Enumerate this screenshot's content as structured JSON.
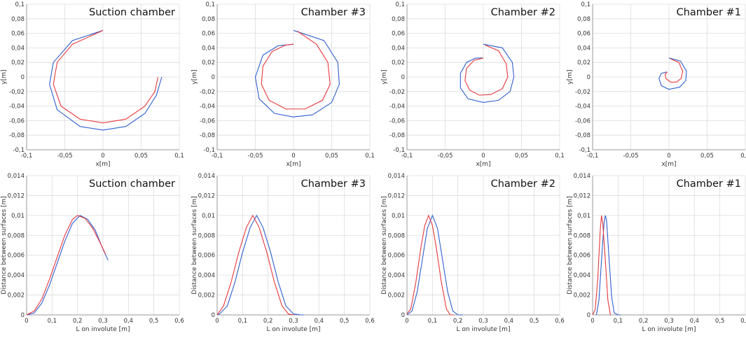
{
  "chart_data": [
    {
      "type": "line",
      "title": "Suction chamber",
      "xlabel": "x[m]",
      "ylabel": "y[m]",
      "grid": true,
      "xlim": [
        -0.1,
        0.1
      ],
      "ylim": [
        -0.1,
        0.1
      ],
      "xticks": [
        {
          "value": -0.1,
          "label": "-0,1"
        },
        {
          "value": -0.05,
          "label": "-0,05"
        },
        0,
        {
          "value": 0.05,
          "label": "0,05"
        },
        {
          "value": 0.1,
          "label": "0,1"
        }
      ],
      "yticks": [
        {
          "value": 0.1,
          "label": "0,1"
        },
        {
          "value": 0.08,
          "label": "0,08"
        },
        {
          "value": 0.06,
          "label": "0,06"
        },
        {
          "value": 0.04,
          "label": "0,04"
        },
        {
          "value": 0.02,
          "label": "0,02"
        },
        0,
        {
          "value": -0.02,
          "label": "-0,02"
        },
        {
          "value": -0.04,
          "label": "-0,04"
        },
        {
          "value": -0.06,
          "label": "-0,06"
        },
        {
          "value": -0.08,
          "label": "-0,08"
        },
        {
          "value": -0.1,
          "label": "-0,1"
        }
      ],
      "series": [
        {
          "color": "#2f5fd0",
          "x": [
            0,
            -0.04,
            -0.065,
            -0.07,
            -0.06,
            -0.03,
            0,
            0.03,
            0.055,
            0.07,
            0.077
          ],
          "values": [
            0.064,
            0.05,
            0.02,
            -0.01,
            -0.045,
            -0.068,
            -0.073,
            -0.068,
            -0.05,
            -0.025,
            0
          ]
        },
        {
          "color": "#e8383d",
          "x": [
            0,
            -0.04,
            -0.06,
            -0.065,
            -0.055,
            -0.03,
            0,
            0.03,
            0.055,
            0.068,
            0.072
          ],
          "values": [
            0.064,
            0.045,
            0.02,
            -0.01,
            -0.04,
            -0.058,
            -0.063,
            -0.058,
            -0.04,
            -0.02,
            0
          ]
        }
      ]
    },
    {
      "type": "line",
      "title": "Chamber #3",
      "xlabel": "x[m]",
      "ylabel": "y[m]",
      "grid": true,
      "xlim": [
        -0.1,
        0.1
      ],
      "ylim": [
        -0.1,
        0.1
      ],
      "xticks": [
        {
          "value": -0.1,
          "label": "-0,1"
        },
        {
          "value": -0.05,
          "label": "-0,05"
        },
        0,
        {
          "value": 0.05,
          "label": "0,05"
        },
        {
          "value": 0.1,
          "label": "0,1"
        }
      ],
      "yticks": [
        {
          "value": 0.1,
          "label": "0,1"
        },
        {
          "value": 0.08,
          "label": "0,08"
        },
        {
          "value": 0.06,
          "label": "0,06"
        },
        {
          "value": 0.04,
          "label": "0,04"
        },
        {
          "value": 0.02,
          "label": "0,02"
        },
        0,
        {
          "value": -0.02,
          "label": "-0,02"
        },
        {
          "value": -0.04,
          "label": "-0,04"
        },
        {
          "value": -0.06,
          "label": "-0,06"
        },
        {
          "value": -0.08,
          "label": "-0,08"
        },
        {
          "value": -0.1,
          "label": "-0,1"
        }
      ],
      "series": [
        {
          "color": "#2f5fd0",
          "x": [
            0,
            0.04,
            0.058,
            0.06,
            0.05,
            0.025,
            0,
            -0.025,
            -0.045,
            -0.05,
            -0.04,
            -0.02,
            0
          ],
          "values": [
            0.064,
            0.05,
            0.02,
            -0.01,
            -0.035,
            -0.052,
            -0.055,
            -0.05,
            -0.03,
            0,
            0.03,
            0.043,
            0.045
          ]
        },
        {
          "color": "#e8383d",
          "x": [
            0.005,
            0.03,
            0.045,
            0.048,
            0.038,
            0.015,
            -0.01,
            -0.032,
            -0.042,
            -0.04,
            -0.028,
            -0.01,
            0
          ],
          "values": [
            0.063,
            0.045,
            0.02,
            -0.01,
            -0.032,
            -0.044,
            -0.044,
            -0.032,
            -0.01,
            0.015,
            0.035,
            0.044,
            0.045
          ]
        }
      ]
    },
    {
      "type": "line",
      "title": "Chamber #2",
      "xlabel": "x[m]",
      "ylabel": "y[m]",
      "grid": true,
      "xlim": [
        -0.1,
        0.1
      ],
      "ylim": [
        -0.1,
        0.1
      ],
      "xticks": [
        {
          "value": -0.1,
          "label": "-0,1"
        },
        {
          "value": -0.05,
          "label": "-0,05"
        },
        0,
        {
          "value": 0.05,
          "label": "0,05"
        },
        {
          "value": 0.1,
          "label": "0,1"
        }
      ],
      "yticks": [
        {
          "value": 0.1,
          "label": "0,1"
        },
        {
          "value": 0.08,
          "label": "0,08"
        },
        {
          "value": 0.06,
          "label": "0,06"
        },
        {
          "value": 0.04,
          "label": "0,04"
        },
        {
          "value": 0.02,
          "label": "0,02"
        },
        0,
        {
          "value": -0.02,
          "label": "-0,02"
        },
        {
          "value": -0.04,
          "label": "-0,04"
        },
        {
          "value": -0.06,
          "label": "-0,06"
        },
        {
          "value": -0.08,
          "label": "-0,08"
        },
        {
          "value": -0.1,
          "label": "-0,1"
        }
      ],
      "series": [
        {
          "color": "#2f5fd0",
          "x": [
            0,
            0.025,
            0.038,
            0.04,
            0.035,
            0.02,
            0,
            -0.02,
            -0.03,
            -0.03,
            -0.022,
            -0.01,
            0
          ],
          "values": [
            0.045,
            0.04,
            0.02,
            0,
            -0.02,
            -0.032,
            -0.035,
            -0.03,
            -0.015,
            0.005,
            0.02,
            0.026,
            0.026
          ]
        },
        {
          "color": "#e8383d",
          "x": [
            0.002,
            0.02,
            0.03,
            0.032,
            0.025,
            0.01,
            -0.005,
            -0.018,
            -0.024,
            -0.022,
            -0.012,
            0
          ],
          "values": [
            0.044,
            0.036,
            0.018,
            0,
            -0.016,
            -0.024,
            -0.025,
            -0.018,
            -0.005,
            0.012,
            0.023,
            0.026
          ]
        }
      ]
    },
    {
      "type": "line",
      "title": "Chamber #1",
      "xlabel": "x[m]",
      "ylabel": "y[m]",
      "grid": true,
      "xlim": [
        -0.1,
        0.1
      ],
      "ylim": [
        -0.1,
        0.1
      ],
      "xticks": [
        {
          "value": -0.1,
          "label": "-0,1"
        },
        {
          "value": -0.05,
          "label": "-0,05"
        },
        0,
        {
          "value": 0.05,
          "label": "0,05"
        },
        {
          "value": 0.1,
          "label": "0,1"
        }
      ],
      "yticks": [
        {
          "value": 0.1,
          "label": "0,1"
        },
        {
          "value": 0.08,
          "label": "0,08"
        },
        {
          "value": 0.06,
          "label": "0,06"
        },
        {
          "value": 0.04,
          "label": "0,04"
        },
        {
          "value": 0.02,
          "label": "0,02"
        },
        0,
        {
          "value": -0.02,
          "label": "-0,02"
        },
        {
          "value": -0.04,
          "label": "-0,04"
        },
        {
          "value": -0.06,
          "label": "-0,06"
        },
        {
          "value": -0.08,
          "label": "-0,08"
        },
        {
          "value": -0.1,
          "label": "-0,1"
        }
      ],
      "series": [
        {
          "color": "#2f5fd0",
          "x": [
            0,
            0.015,
            0.023,
            0.022,
            0.014,
            0,
            -0.01,
            -0.013,
            -0.01,
            -0.003
          ],
          "values": [
            0.026,
            0.022,
            0.008,
            -0.005,
            -0.014,
            -0.017,
            -0.012,
            -0.002,
            0.005,
            0.007
          ]
        },
        {
          "color": "#e8383d",
          "x": [
            0.002,
            0.013,
            0.018,
            0.016,
            0.01,
            0.002,
            -0.004,
            -0.005,
            -0.002
          ],
          "values": [
            0.025,
            0.02,
            0.008,
            -0.002,
            -0.007,
            -0.007,
            -0.002,
            0.004,
            0.007
          ]
        }
      ]
    },
    {
      "type": "line",
      "title": "Suction chamber",
      "xlabel": "L on involute [m]",
      "ylabel": "Distance between surfaces [m]",
      "grid": true,
      "xlim": [
        0,
        0.6
      ],
      "ylim": [
        0,
        0.014
      ],
      "xticks": [
        0,
        {
          "value": 0.1,
          "label": "0,1"
        },
        {
          "value": 0.2,
          "label": "0,2"
        },
        {
          "value": 0.3,
          "label": "0,3"
        },
        {
          "value": 0.4,
          "label": "0,4"
        },
        {
          "value": 0.5,
          "label": "0,5"
        },
        {
          "value": 0.6,
          "label": "0,6"
        }
      ],
      "yticks": [
        {
          "value": 0.014,
          "label": "0,014"
        },
        {
          "value": 0.012,
          "label": "0,012"
        },
        {
          "value": 0.01,
          "label": "0,01"
        },
        {
          "value": 0.008,
          "label": "0,008"
        },
        {
          "value": 0.006,
          "label": "0,006"
        },
        {
          "value": 0.004,
          "label": "0,004"
        },
        {
          "value": 0.002,
          "label": "0,002"
        },
        0
      ],
      "series": [
        {
          "color": "#2f5fd0",
          "x": [
            0,
            0.03,
            0.06,
            0.09,
            0.12,
            0.15,
            0.18,
            0.21,
            0.24,
            0.27,
            0.3,
            0.32
          ],
          "values": [
            0,
            0.0002,
            0.0012,
            0.003,
            0.0052,
            0.0074,
            0.0092,
            0.01,
            0.0096,
            0.0085,
            0.0066,
            0.0055
          ]
        },
        {
          "color": "#e8383d",
          "x": [
            0,
            0.03,
            0.06,
            0.09,
            0.12,
            0.15,
            0.18,
            0.2,
            0.23,
            0.26,
            0.29,
            0.31
          ],
          "values": [
            0,
            0.0004,
            0.0016,
            0.0036,
            0.0058,
            0.008,
            0.0096,
            0.01,
            0.0097,
            0.0087,
            0.0072,
            0.0061
          ]
        }
      ]
    },
    {
      "type": "line",
      "title": "Chamber #3",
      "xlabel": "L on involute [m]",
      "ylabel": "Distance between surfaces [m]",
      "grid": true,
      "xlim": [
        0,
        0.6
      ],
      "ylim": [
        0,
        0.014
      ],
      "xticks": [
        0,
        {
          "value": 0.1,
          "label": "0,1"
        },
        {
          "value": 0.2,
          "label": "0,2"
        },
        {
          "value": 0.3,
          "label": "0,3"
        },
        {
          "value": 0.4,
          "label": "0,4"
        },
        {
          "value": 0.5,
          "label": "0,5"
        },
        {
          "value": 0.6,
          "label": "0,6"
        }
      ],
      "yticks": [
        {
          "value": 0.014,
          "label": "0,014"
        },
        {
          "value": 0.012,
          "label": "0,012"
        },
        {
          "value": 0.01,
          "label": "0,01"
        },
        {
          "value": 0.008,
          "label": "0,008"
        },
        {
          "value": 0.006,
          "label": "0,006"
        },
        {
          "value": 0.004,
          "label": "0,004"
        },
        {
          "value": 0.002,
          "label": "0,002"
        },
        0
      ],
      "series": [
        {
          "color": "#2f5fd0",
          "x": [
            0,
            0.01,
            0.04,
            0.07,
            0.1,
            0.13,
            0.155,
            0.18,
            0.21,
            0.24,
            0.27,
            0.3,
            0.33,
            0.34
          ],
          "values": [
            0,
            0.0001,
            0.0009,
            0.0033,
            0.0063,
            0.0088,
            0.01,
            0.0088,
            0.0063,
            0.0033,
            0.0009,
            0.0001,
            0,
            0
          ]
        },
        {
          "color": "#e8383d",
          "x": [
            0,
            0.025,
            0.055,
            0.085,
            0.115,
            0.14,
            0.165,
            0.195,
            0.225,
            0.255,
            0.28,
            0.3
          ],
          "values": [
            0,
            0.0009,
            0.0033,
            0.0063,
            0.0088,
            0.01,
            0.0088,
            0.0063,
            0.0033,
            0.0009,
            0.0001,
            0
          ]
        }
      ]
    },
    {
      "type": "line",
      "title": "Chamber #2",
      "xlabel": "L on involute [m]",
      "ylabel": "Distance between surfaces [m]",
      "grid": true,
      "xlim": [
        0,
        0.6
      ],
      "ylim": [
        0,
        0.014
      ],
      "xticks": [
        0,
        {
          "value": 0.1,
          "label": "0,1"
        },
        {
          "value": 0.2,
          "label": "0,2"
        },
        {
          "value": 0.3,
          "label": "0,3"
        },
        {
          "value": 0.4,
          "label": "0,4"
        },
        {
          "value": 0.5,
          "label": "0,5"
        },
        {
          "value": 0.6,
          "label": "0,6"
        }
      ],
      "yticks": [
        {
          "value": 0.014,
          "label": "0,014"
        },
        {
          "value": 0.012,
          "label": "0,012"
        },
        {
          "value": 0.01,
          "label": "0,01"
        },
        {
          "value": 0.008,
          "label": "0,008"
        },
        {
          "value": 0.006,
          "label": "0,006"
        },
        {
          "value": 0.004,
          "label": "0,004"
        },
        {
          "value": 0.002,
          "label": "0,002"
        },
        0
      ],
      "series": [
        {
          "color": "#2f5fd0",
          "x": [
            0,
            0.02,
            0.04,
            0.06,
            0.08,
            0.1,
            0.12,
            0.14,
            0.16,
            0.18,
            0.2,
            0.22
          ],
          "values": [
            0,
            0.0004,
            0.0023,
            0.0055,
            0.0087,
            0.01,
            0.0087,
            0.0055,
            0.0023,
            0.0004,
            0,
            0
          ]
        },
        {
          "color": "#e8383d",
          "x": [
            0,
            0.015,
            0.035,
            0.055,
            0.07,
            0.085,
            0.1,
            0.115,
            0.135,
            0.155,
            0.17,
            0.185
          ],
          "values": [
            0.0001,
            0.0006,
            0.0033,
            0.0068,
            0.009,
            0.01,
            0.009,
            0.0068,
            0.0033,
            0.0006,
            0,
            0
          ]
        }
      ]
    },
    {
      "type": "line",
      "title": "Chamber #1",
      "xlabel": "L on involute [m]",
      "ylabel": "Distance between surfaces [m]",
      "grid": true,
      "xlim": [
        0,
        0.6
      ],
      "ylim": [
        0,
        0.014
      ],
      "xticks": [
        0,
        {
          "value": 0.1,
          "label": "0,1"
        },
        {
          "value": 0.2,
          "label": "0,2"
        },
        {
          "value": 0.3,
          "label": "0,3"
        },
        {
          "value": 0.4,
          "label": "0,4"
        },
        {
          "value": 0.5,
          "label": "0,5"
        },
        {
          "value": 0.6,
          "label": "0,6"
        }
      ],
      "yticks": [
        {
          "value": 0.014,
          "label": "0,014"
        },
        {
          "value": 0.012,
          "label": "0,012"
        },
        {
          "value": 0.01,
          "label": "0,01"
        },
        {
          "value": 0.008,
          "label": "0,008"
        },
        {
          "value": 0.006,
          "label": "0,006"
        },
        {
          "value": 0.004,
          "label": "0,004"
        },
        {
          "value": 0.002,
          "label": "0,002"
        },
        0
      ],
      "series": [
        {
          "color": "#2f5fd0",
          "x": [
            0.015,
            0.025,
            0.035,
            0.045,
            0.05,
            0.055,
            0.065,
            0.075,
            0.085,
            0.1,
            0.11
          ],
          "values": [
            0,
            0.0015,
            0.0055,
            0.0092,
            0.01,
            0.0095,
            0.0055,
            0.0018,
            0.0002,
            0,
            0
          ]
        },
        {
          "color": "#e8383d",
          "x": [
            0,
            0.01,
            0.02,
            0.03,
            0.035,
            0.04,
            0.05,
            0.06,
            0.07
          ],
          "values": [
            0,
            0.0005,
            0.0035,
            0.0085,
            0.01,
            0.0092,
            0.0055,
            0.0015,
            0
          ]
        }
      ]
    }
  ]
}
